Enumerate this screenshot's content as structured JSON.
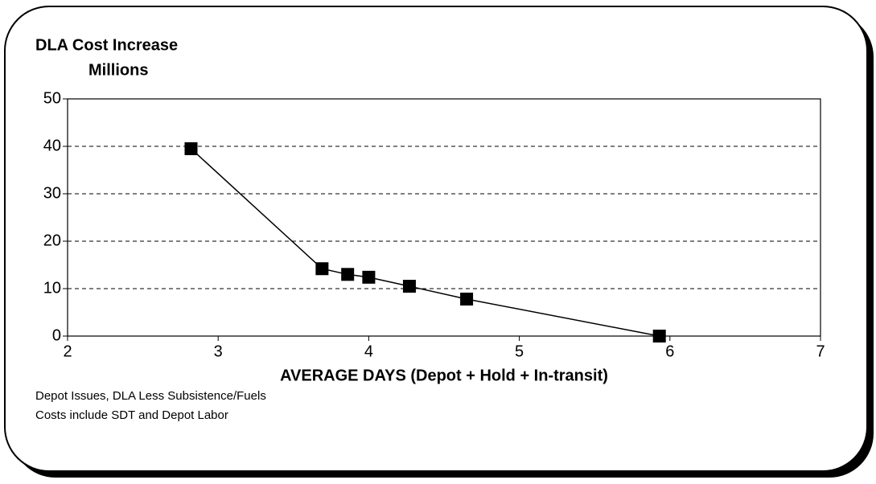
{
  "chart_data": {
    "type": "line",
    "title": "DLA Cost Increase",
    "y_label": "Millions",
    "x_label": "AVERAGE DAYS (Depot + Hold + In-transit)",
    "notes": [
      "Depot Issues, DLA Less Subsistence/Fuels",
      "Costs include SDT and Depot Labor"
    ],
    "x": [
      2.82,
      3.69,
      3.86,
      4.0,
      4.27,
      4.65,
      5.93
    ],
    "values": [
      39.5,
      14.2,
      13.0,
      12.4,
      10.5,
      7.8,
      0
    ],
    "color": "#000000",
    "xlim": [
      2,
      7
    ],
    "xticks": [
      2,
      3,
      4,
      5,
      6,
      7
    ],
    "ylim": [
      0,
      50
    ],
    "yticks": [
      0,
      10,
      20,
      30,
      40,
      50
    ],
    "grid": true
  }
}
